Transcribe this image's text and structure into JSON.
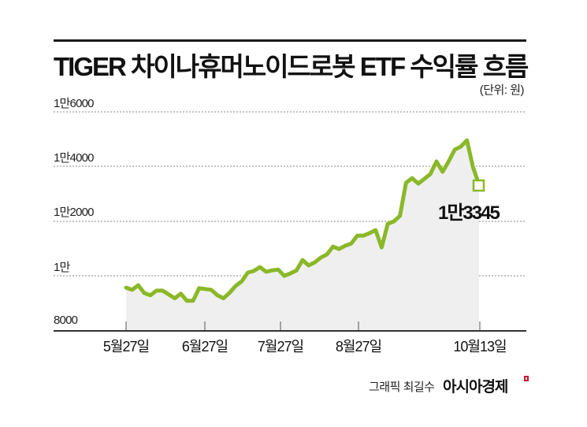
{
  "header": {
    "title": "TIGER 차이나휴머노이드로봇 ETF 수익률 흐름",
    "unit": "(단위: 원)"
  },
  "y_axis": {
    "ticks": [
      {
        "label": "1만6000",
        "value": 16000
      },
      {
        "label": "1만4000",
        "value": 14000
      },
      {
        "label": "1만2000",
        "value": 12000
      },
      {
        "label": "1만",
        "value": 10000
      },
      {
        "label": "8000",
        "value": 8000
      }
    ]
  },
  "x_axis": {
    "ticks": [
      {
        "label": "5월27일"
      },
      {
        "label": "6월27일"
      },
      {
        "label": "7월27일"
      },
      {
        "label": "8월27일"
      },
      {
        "label": "10월13일"
      }
    ]
  },
  "annotation": {
    "end_value_label": "1만3345"
  },
  "footer": {
    "credit": "그래픽 최길수",
    "brand": "아시아경제"
  },
  "colors": {
    "line": "#8ab829",
    "area": "#efefef",
    "grid": "#8a8a8a",
    "axis": "#333333",
    "brand_mark": "#c8102e"
  },
  "chart_data": {
    "type": "area",
    "title": "TIGER 차이나휴머노이드로봇 ETF 수익률 흐름",
    "subtitle": "(단위: 원)",
    "xlabel": "",
    "ylabel": "원",
    "ylim": [
      8000,
      16000
    ],
    "yticks": [
      8000,
      10000,
      12000,
      14000,
      16000
    ],
    "ytick_labels": [
      "8000",
      "1만",
      "1만2000",
      "1만4000",
      "1만6000"
    ],
    "xtick_labels": [
      "5월27일",
      "6월27일",
      "7월27일",
      "8월27일",
      "10월13일"
    ],
    "grid": true,
    "legend": null,
    "annotations": [
      {
        "text": "1만3345",
        "at": "10월13일",
        "value": 13345
      }
    ],
    "series": [
      {
        "name": "TIGER 차이나휴머노이드로봇 ETF",
        "points": [
          {
            "x": "5월27일",
            "y": 9580
          },
          {
            "y": 9500
          },
          {
            "y": 9670
          },
          {
            "y": 9380
          },
          {
            "y": 9300
          },
          {
            "y": 9470
          },
          {
            "y": 9470
          },
          {
            "y": 9330
          },
          {
            "y": 9190
          },
          {
            "y": 9360
          },
          {
            "y": 9100
          },
          {
            "y": 9100
          },
          {
            "x": "6월27일",
            "y": 9560
          },
          {
            "y": 9530
          },
          {
            "y": 9500
          },
          {
            "y": 9300
          },
          {
            "y": 9190
          },
          {
            "y": 9390
          },
          {
            "y": 9640
          },
          {
            "y": 9810
          },
          {
            "y": 10130
          },
          {
            "y": 10190
          },
          {
            "x": "7월27일",
            "y": 10330
          },
          {
            "y": 10160
          },
          {
            "y": 10210
          },
          {
            "y": 10240
          },
          {
            "y": 10010
          },
          {
            "y": 10100
          },
          {
            "y": 10210
          },
          {
            "y": 10590
          },
          {
            "y": 10390
          },
          {
            "y": 10500
          },
          {
            "y": 10680
          },
          {
            "y": 10790
          },
          {
            "y": 11080
          },
          {
            "y": 10990
          },
          {
            "x": "8월27일",
            "y": 11110
          },
          {
            "y": 11190
          },
          {
            "y": 11480
          },
          {
            "y": 11480
          },
          {
            "y": 11570
          },
          {
            "y": 11680
          },
          {
            "y": 11050
          },
          {
            "y": 11910
          },
          {
            "y": 12000
          },
          {
            "y": 12200
          },
          {
            "y": 13410
          },
          {
            "y": 13580
          },
          {
            "y": 13380
          },
          {
            "y": 13550
          },
          {
            "y": 13730
          },
          {
            "y": 14190
          },
          {
            "y": 13810
          },
          {
            "y": 14190
          },
          {
            "y": 14620
          },
          {
            "y": 14730
          },
          {
            "y": 14960
          },
          {
            "y": 13980
          },
          {
            "x": "10월13일",
            "y": 13345
          }
        ]
      }
    ]
  }
}
